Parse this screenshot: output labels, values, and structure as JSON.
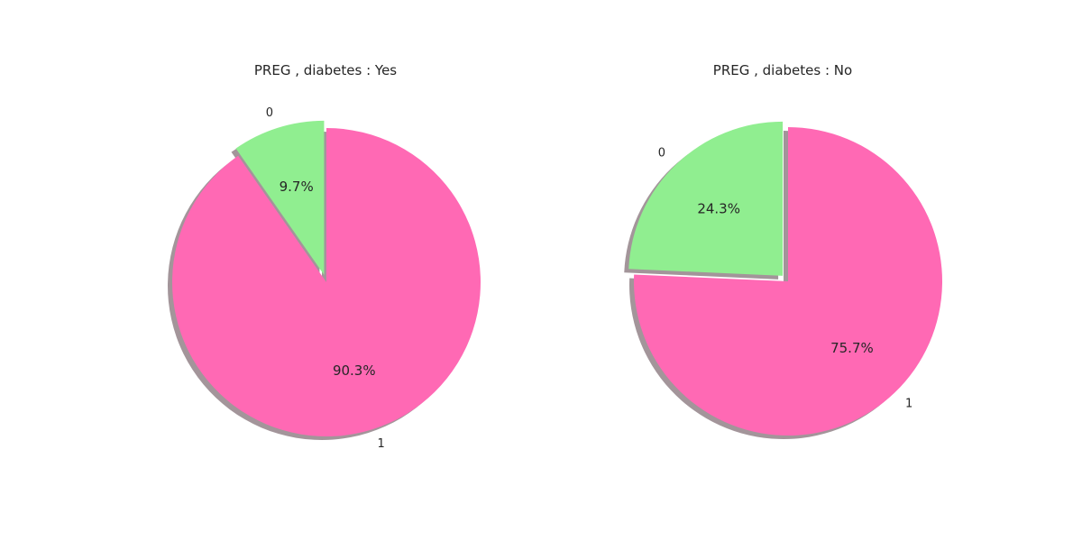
{
  "chart_data": [
    {
      "type": "pie",
      "title": "PREG , diabetes : Yes",
      "slices": [
        {
          "label": "0",
          "value": 9.7,
          "pct_label": "9.7%",
          "color": "#90EE90",
          "exploded": true
        },
        {
          "label": "1",
          "value": 90.3,
          "pct_label": "90.3%",
          "color": "#FF69B4",
          "exploded": false
        }
      ],
      "start_angle_deg": 90,
      "direction": "counterclockwise",
      "shadow": true,
      "shadow_color": "#A3959A"
    },
    {
      "type": "pie",
      "title": "PREG , diabetes : No",
      "slices": [
        {
          "label": "0",
          "value": 24.3,
          "pct_label": "24.3%",
          "color": "#90EE90",
          "exploded": true
        },
        {
          "label": "1",
          "value": 75.7,
          "pct_label": "75.7%",
          "color": "#FF69B4",
          "exploded": false
        }
      ],
      "start_angle_deg": 90,
      "direction": "counterclockwise",
      "shadow": true,
      "shadow_color": "#A3959A"
    }
  ]
}
